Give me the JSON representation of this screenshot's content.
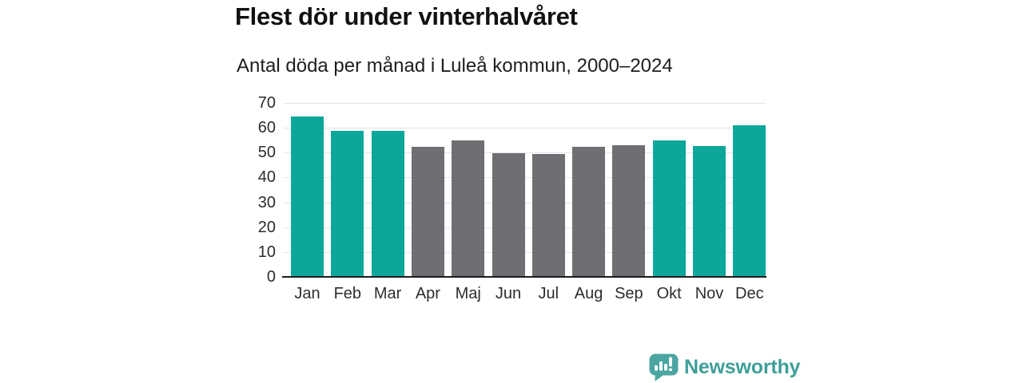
{
  "chart": {
    "title": "Flest dör under vinterhalvåret",
    "subtitle": "Antal döda per månad i Luleå kommun, 2000–2024"
  },
  "brand": {
    "name": "Newsworthy",
    "icon": "newsworthy-speech-bubble-bar-chart-icon",
    "text_color": "#3f9e99",
    "icon_color": "#4ba6a1"
  },
  "colors": {
    "highlight_teal": "#0ca79b",
    "muted_gray": "#6e6e73",
    "gridline": "#e4e4e4",
    "axis_line": "#1c1c1c",
    "label_text": "#2d2d2d"
  },
  "chart_data": {
    "type": "bar",
    "title": "Flest dör under vinterhalvåret",
    "subtitle": "Antal döda per månad i Luleå kommun, 2000–2024",
    "categories": [
      "Jan",
      "Feb",
      "Mar",
      "Apr",
      "Maj",
      "Jun",
      "Jul",
      "Aug",
      "Sep",
      "Okt",
      "Nov",
      "Dec"
    ],
    "values": [
      64.6,
      58.9,
      58.7,
      52.4,
      54.9,
      49.9,
      49.4,
      52.4,
      52.9,
      55.0,
      52.7,
      61.0
    ],
    "highlighted": [
      true,
      true,
      true,
      false,
      false,
      false,
      false,
      false,
      false,
      true,
      true,
      true
    ],
    "highlight_meaning": "winter half-year months (teal), summer half-year months (gray)",
    "xlabel": "",
    "ylabel": "",
    "ylim": [
      0,
      70
    ],
    "yticks": [
      0,
      10,
      20,
      30,
      40,
      50,
      60,
      70
    ],
    "grid": true,
    "legend": "none",
    "bar_colors": {
      "highlight": "#0ca79b",
      "muted": "#6e6e73"
    }
  }
}
